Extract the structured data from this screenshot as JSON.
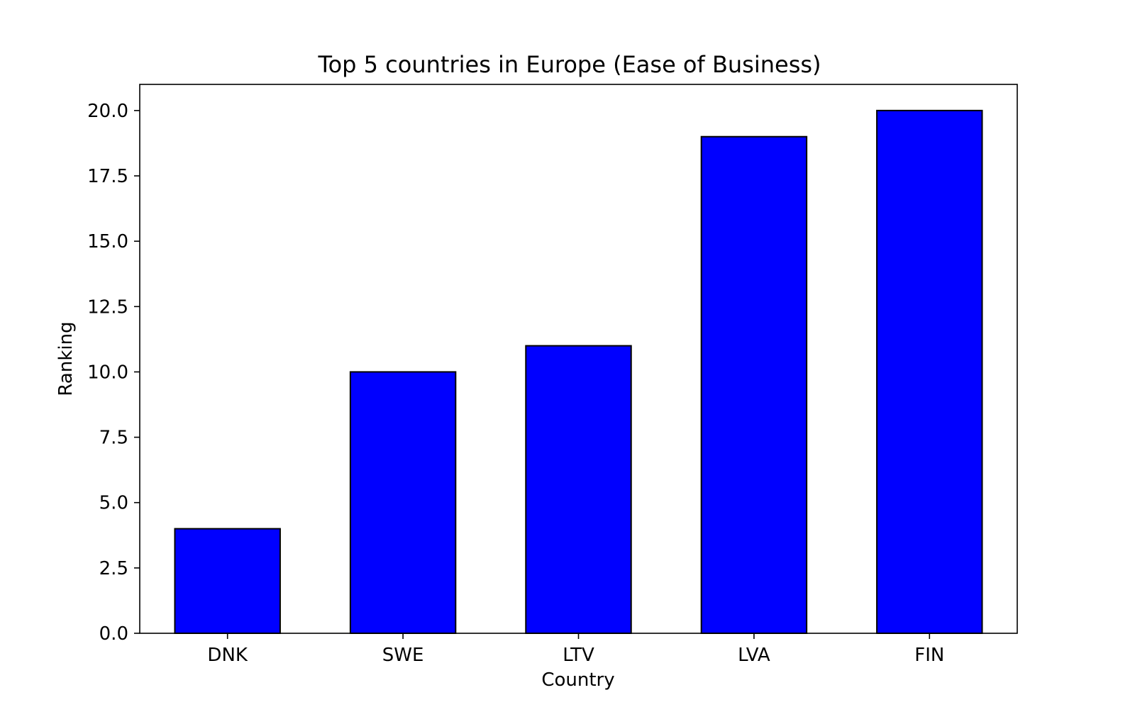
{
  "chart_data": {
    "type": "bar",
    "title": "Top 5 countries in Europe (Ease of Business)",
    "xlabel": "Country",
    "ylabel": "Ranking",
    "categories": [
      "DNK",
      "SWE",
      "LTV",
      "LVA",
      "FIN"
    ],
    "values": [
      4,
      10,
      11,
      19,
      20
    ],
    "ylim": [
      0,
      21
    ],
    "yticks": [
      "0.0",
      "2.5",
      "5.0",
      "7.5",
      "10.0",
      "12.5",
      "15.0",
      "17.5",
      "20.0"
    ],
    "grid": false,
    "legend": "none",
    "colors": {
      "bar_fill": "#0000ff",
      "bar_edge": "#000000",
      "axes": "#000000",
      "background": "#ffffff"
    }
  }
}
